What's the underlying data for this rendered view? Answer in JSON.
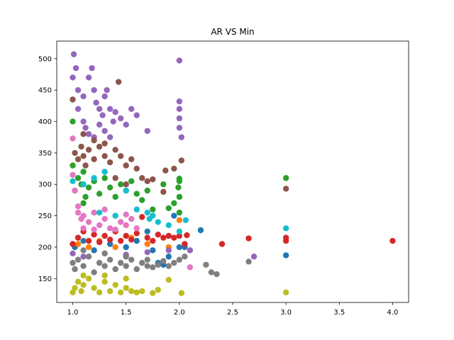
{
  "chart_data": {
    "type": "scatter",
    "title": "AR VS Min",
    "xlabel": "",
    "ylabel": "",
    "xlim": [
      0.85,
      4.15
    ],
    "ylim": [
      112,
      528
    ],
    "xticks": [
      1.0,
      1.5,
      2.0,
      2.5,
      3.0,
      3.5,
      4.0
    ],
    "yticks": [
      150,
      200,
      250,
      300,
      350,
      400,
      450,
      500
    ],
    "grid": false,
    "legend": "none",
    "series": [
      {
        "color": "#1f77b4",
        "points": [
          [
            1.02,
            200
          ],
          [
            1.1,
            210
          ],
          [
            1.2,
            195
          ],
          [
            1.35,
            205
          ],
          [
            1.5,
            200
          ],
          [
            1.6,
            210
          ],
          [
            1.7,
            225
          ],
          [
            1.8,
            175
          ],
          [
            1.9,
            185
          ],
          [
            1.95,
            250
          ],
          [
            2.0,
            200
          ],
          [
            2.05,
            200
          ],
          [
            2.2,
            227
          ],
          [
            3.0,
            187
          ],
          [
            1.85,
            172
          ],
          [
            1.75,
            195
          ]
        ]
      },
      {
        "color": "#ff7f0e",
        "points": [
          [
            1.05,
            205
          ],
          [
            1.15,
            200
          ],
          [
            1.25,
            210
          ],
          [
            1.4,
            200
          ],
          [
            1.55,
            215
          ],
          [
            1.7,
            205
          ],
          [
            2.0,
            243
          ],
          [
            1.9,
            200
          ]
        ]
      },
      {
        "color": "#2ca02c",
        "points": [
          [
            1.0,
            400
          ],
          [
            1.02,
            290
          ],
          [
            1.05,
            310
          ],
          [
            1.08,
            300
          ],
          [
            1.1,
            320
          ],
          [
            1.12,
            280
          ],
          [
            1.15,
            295
          ],
          [
            1.2,
            305
          ],
          [
            1.25,
            285
          ],
          [
            1.3,
            310
          ],
          [
            1.35,
            295
          ],
          [
            1.4,
            280
          ],
          [
            1.45,
            300
          ],
          [
            1.5,
            290
          ],
          [
            1.55,
            305
          ],
          [
            1.6,
            285
          ],
          [
            1.65,
            275
          ],
          [
            1.7,
            290
          ],
          [
            1.75,
            260
          ],
          [
            1.85,
            300
          ],
          [
            1.9,
            262
          ],
          [
            1.95,
            270
          ],
          [
            1.99,
            295
          ],
          [
            2.0,
            309
          ],
          [
            2.0,
            305
          ],
          [
            2.0,
            280
          ],
          [
            2.0,
            255
          ],
          [
            1.0,
            330
          ],
          [
            1.1,
            270
          ],
          [
            3.0,
            310
          ]
        ]
      },
      {
        "color": "#d62728",
        "points": [
          [
            1.0,
            205
          ],
          [
            1.05,
            215
          ],
          [
            1.1,
            225
          ],
          [
            1.15,
            210
          ],
          [
            1.2,
            220
          ],
          [
            1.25,
            208
          ],
          [
            1.3,
            218
          ],
          [
            1.35,
            212
          ],
          [
            1.4,
            225
          ],
          [
            1.45,
            210
          ],
          [
            1.5,
            218
          ],
          [
            1.55,
            212
          ],
          [
            1.6,
            222
          ],
          [
            1.65,
            248
          ],
          [
            1.7,
            215
          ],
          [
            1.75,
            210
          ],
          [
            1.8,
            220
          ],
          [
            1.85,
            215
          ],
          [
            1.9,
            218
          ],
          [
            1.95,
            215
          ],
          [
            2.0,
            218
          ],
          [
            2.05,
            205
          ],
          [
            2.07,
            219
          ],
          [
            2.4,
            205
          ],
          [
            2.65,
            214
          ],
          [
            3.0,
            215
          ],
          [
            3.0,
            210
          ],
          [
            4.0,
            210
          ]
        ]
      },
      {
        "color": "#9467bd",
        "points": [
          [
            1.01,
            507
          ],
          [
            1.03,
            485
          ],
          [
            1.0,
            470
          ],
          [
            1.05,
            450
          ],
          [
            1.1,
            440
          ],
          [
            1.15,
            470
          ],
          [
            1.18,
            485
          ],
          [
            1.2,
            450
          ],
          [
            1.22,
            430
          ],
          [
            1.25,
            420
          ],
          [
            1.28,
            410
          ],
          [
            1.3,
            440
          ],
          [
            1.32,
            450
          ],
          [
            1.35,
            420
          ],
          [
            1.38,
            400
          ],
          [
            1.4,
            415
          ],
          [
            1.45,
            405
          ],
          [
            1.5,
            395
          ],
          [
            1.55,
            420
          ],
          [
            1.6,
            410
          ],
          [
            1.7,
            385
          ],
          [
            1.05,
            420
          ],
          [
            1.1,
            400
          ],
          [
            1.12,
            390
          ],
          [
            1.15,
            380
          ],
          [
            1.2,
            375
          ],
          [
            1.25,
            395
          ],
          [
            1.3,
            385
          ],
          [
            1.35,
            375
          ],
          [
            2.0,
            497
          ],
          [
            2.0,
            432
          ],
          [
            2.0,
            420
          ],
          [
            2.0,
            405
          ],
          [
            2.0,
            390
          ],
          [
            2.02,
            375
          ],
          [
            1.0,
            190
          ],
          [
            1.1,
            185
          ],
          [
            1.3,
            190
          ],
          [
            1.5,
            188
          ],
          [
            1.7,
            192
          ],
          [
            1.9,
            195
          ],
          [
            2.7,
            185
          ],
          [
            2.1,
            195
          ]
        ]
      },
      {
        "color": "#8c564b",
        "points": [
          [
            1.0,
            435
          ],
          [
            1.02,
            350
          ],
          [
            1.05,
            340
          ],
          [
            1.08,
            360
          ],
          [
            1.1,
            345
          ],
          [
            1.12,
            330
          ],
          [
            1.15,
            355
          ],
          [
            1.2,
            340
          ],
          [
            1.25,
            360
          ],
          [
            1.3,
            345
          ],
          [
            1.35,
            335
          ],
          [
            1.4,
            355
          ],
          [
            1.45,
            345
          ],
          [
            1.5,
            330
          ],
          [
            1.55,
            340
          ],
          [
            1.6,
            325
          ],
          [
            1.65,
            310
          ],
          [
            1.7,
            305
          ],
          [
            1.75,
            308
          ],
          [
            1.87,
            322
          ],
          [
            1.95,
            325
          ],
          [
            2.02,
            338
          ],
          [
            1.1,
            380
          ],
          [
            1.2,
            370
          ],
          [
            1.3,
            365
          ],
          [
            1.43,
            463
          ],
          [
            1.4,
            310
          ],
          [
            1.5,
            300
          ],
          [
            3.0,
            293
          ],
          [
            1.85,
            288
          ]
        ]
      },
      {
        "color": "#e377c2",
        "points": [
          [
            1.0,
            373
          ],
          [
            1.0,
            315
          ],
          [
            1.02,
            290
          ],
          [
            1.05,
            255
          ],
          [
            1.08,
            245
          ],
          [
            1.1,
            250
          ],
          [
            1.15,
            240
          ],
          [
            1.2,
            255
          ],
          [
            1.25,
            235
          ],
          [
            1.3,
            245
          ],
          [
            1.35,
            230
          ],
          [
            1.4,
            250
          ],
          [
            1.45,
            240
          ],
          [
            1.5,
            235
          ],
          [
            1.55,
            245
          ],
          [
            1.6,
            230
          ],
          [
            1.05,
            265
          ],
          [
            1.1,
            230
          ],
          [
            1.2,
            228
          ],
          [
            1.3,
            260
          ],
          [
            1.4,
            228
          ],
          [
            1.5,
            252
          ],
          [
            2.1,
            168
          ]
        ]
      },
      {
        "color": "#7f7f7f",
        "points": [
          [
            1.0,
            175
          ],
          [
            1.02,
            165
          ],
          [
            1.05,
            180
          ],
          [
            1.1,
            170
          ],
          [
            1.15,
            185
          ],
          [
            1.2,
            160
          ],
          [
            1.25,
            175
          ],
          [
            1.3,
            170
          ],
          [
            1.35,
            180
          ],
          [
            1.4,
            165
          ],
          [
            1.45,
            175
          ],
          [
            1.5,
            170
          ],
          [
            1.55,
            180
          ],
          [
            1.6,
            165
          ],
          [
            1.65,
            175
          ],
          [
            1.7,
            170
          ],
          [
            1.75,
            168
          ],
          [
            1.8,
            172
          ],
          [
            1.85,
            178
          ],
          [
            1.9,
            170
          ],
          [
            1.95,
            175
          ],
          [
            2.0,
            180
          ],
          [
            2.05,
            185
          ],
          [
            2.25,
            172
          ],
          [
            2.3,
            160
          ],
          [
            2.35,
            157
          ],
          [
            2.65,
            177
          ],
          [
            1.1,
            195
          ],
          [
            1.3,
            190
          ],
          [
            1.5,
            185
          ],
          [
            1.7,
            180
          ]
        ]
      },
      {
        "color": "#bcbd22",
        "points": [
          [
            1.0,
            128
          ],
          [
            1.02,
            135
          ],
          [
            1.05,
            145
          ],
          [
            1.08,
            130
          ],
          [
            1.1,
            140
          ],
          [
            1.15,
            150
          ],
          [
            1.2,
            135
          ],
          [
            1.25,
            128
          ],
          [
            1.3,
            145
          ],
          [
            1.35,
            130
          ],
          [
            1.4,
            140
          ],
          [
            1.45,
            128
          ],
          [
            1.5,
            135
          ],
          [
            1.55,
            130
          ],
          [
            1.6,
            128
          ],
          [
            1.65,
            130
          ],
          [
            1.75,
            127
          ],
          [
            1.8,
            132
          ],
          [
            1.9,
            148
          ],
          [
            2.02,
            127
          ],
          [
            3.0,
            128
          ],
          [
            1.1,
            155
          ],
          [
            1.3,
            155
          ],
          [
            1.5,
            150
          ]
        ]
      },
      {
        "color": "#17becf",
        "points": [
          [
            1.0,
            305
          ],
          [
            1.1,
            300
          ],
          [
            1.2,
            310
          ],
          [
            1.3,
            320
          ],
          [
            1.5,
            290
          ],
          [
            1.6,
            260
          ],
          [
            1.7,
            255
          ],
          [
            1.72,
            245
          ],
          [
            1.75,
            250
          ],
          [
            1.8,
            240
          ],
          [
            1.9,
            235
          ],
          [
            2.0,
            225
          ],
          [
            2.06,
            243
          ],
          [
            3.0,
            230
          ],
          [
            1.25,
            255
          ],
          [
            1.4,
            250
          ]
        ]
      }
    ]
  }
}
